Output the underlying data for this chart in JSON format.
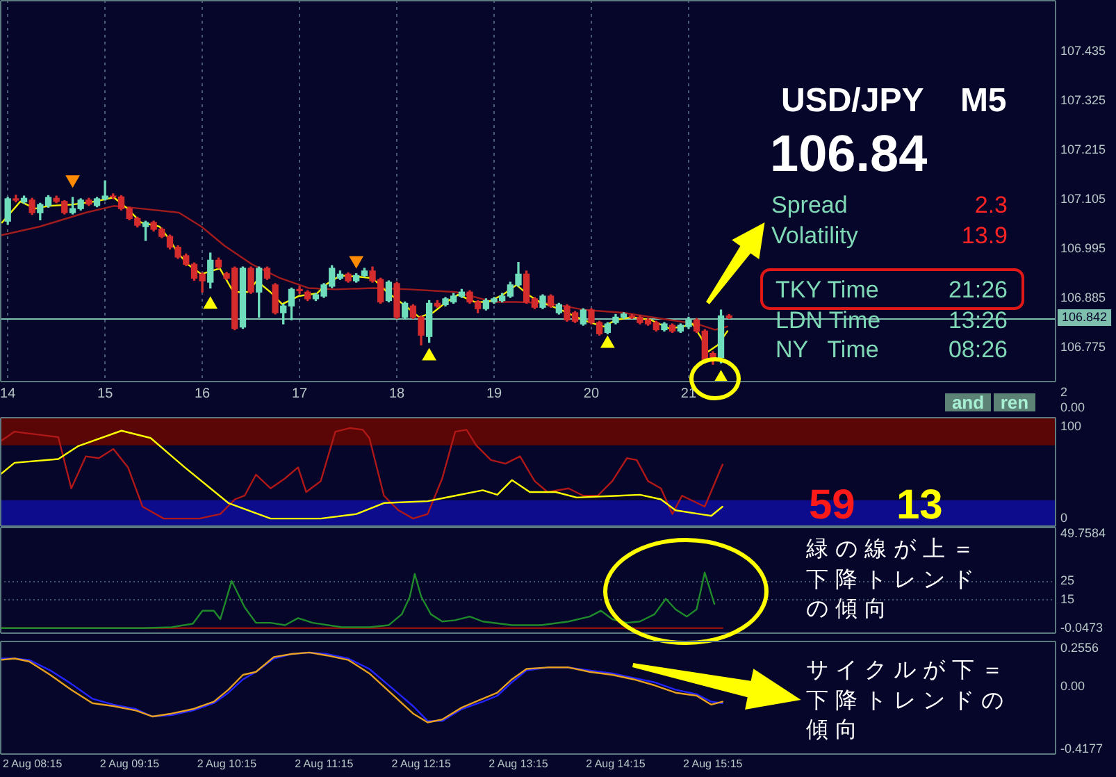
{
  "chart_data": [
    {
      "type": "candlestick",
      "title": "USD/JPY    M5",
      "x": [
        14,
        14.083,
        14.167,
        14.25,
        14.333,
        14.417,
        14.5,
        14.583,
        14.667,
        14.75,
        14.833,
        14.917,
        15,
        15.083,
        15.167,
        15.25,
        15.333,
        15.417,
        15.5,
        15.583,
        15.667,
        15.75,
        15.833,
        15.917,
        16,
        16.083,
        16.167,
        16.25,
        16.333,
        16.417,
        16.5,
        16.583,
        16.667,
        16.75,
        16.833,
        16.917,
        17,
        17.083,
        17.167,
        17.25,
        17.333,
        17.417,
        17.5,
        17.583,
        17.667,
        17.75,
        17.833,
        17.917,
        18,
        18.083,
        18.167,
        18.25,
        18.333,
        18.417,
        18.5,
        18.583,
        18.667,
        18.75,
        18.833,
        18.917,
        19,
        19.083,
        19.167,
        19.25,
        19.333,
        19.417,
        19.5,
        19.583,
        19.667,
        19.75,
        19.833,
        19.917,
        20,
        20.083,
        20.167,
        20.25,
        20.333,
        20.417,
        20.5,
        20.583,
        20.667,
        20.75,
        20.833,
        20.917,
        21,
        21.083,
        21.167,
        21.25,
        21.333,
        21.417
      ],
      "ohlc": [
        [
          107.057,
          107.11,
          107.05,
          107.107
        ],
        [
          107.107,
          107.115,
          107.1,
          107.104
        ],
        [
          107.1,
          107.113,
          107.097,
          107.108
        ],
        [
          107.104,
          107.108,
          107.072,
          107.076
        ],
        [
          107.076,
          107.097,
          107.06,
          107.094
        ],
        [
          107.092,
          107.114,
          107.088,
          107.11
        ],
        [
          107.108,
          107.113,
          107.098,
          107.101
        ],
        [
          107.101,
          107.103,
          107.073,
          107.076
        ],
        [
          107.076,
          107.11,
          107.073,
          107.085
        ],
        [
          107.085,
          107.107,
          107.082,
          107.104
        ],
        [
          107.104,
          107.108,
          107.092,
          107.095
        ],
        [
          107.092,
          107.11,
          107.089,
          107.107
        ],
        [
          107.107,
          107.147,
          107.104,
          107.113
        ],
        [
          107.113,
          107.118,
          107.107,
          107.111
        ],
        [
          107.111,
          107.114,
          107.082,
          107.085
        ],
        [
          107.085,
          107.088,
          107.06,
          107.063
        ],
        [
          107.063,
          107.066,
          107.044,
          107.048
        ],
        [
          107.045,
          107.057,
          107.014,
          107.054
        ],
        [
          107.054,
          107.057,
          107.035,
          107.039
        ],
        [
          107.039,
          107.042,
          107.02,
          107.023
        ],
        [
          107.023,
          107.026,
          106.995,
          106.999
        ],
        [
          106.999,
          107.002,
          106.974,
          106.977
        ],
        [
          106.98,
          106.984,
          106.958,
          106.961
        ],
        [
          106.961,
          106.964,
          106.925,
          106.93
        ],
        [
          106.939,
          106.942,
          106.899,
          106.924
        ],
        [
          106.921,
          106.986,
          106.908,
          106.97
        ],
        [
          106.97,
          106.975,
          106.952,
          106.955
        ],
        [
          106.94,
          106.943,
          106.927,
          106.93
        ],
        [
          106.952,
          106.955,
          106.815,
          106.818
        ],
        [
          106.821,
          106.955,
          106.818,
          106.952
        ],
        [
          106.952,
          106.955,
          106.896,
          106.899
        ],
        [
          106.899,
          106.955,
          106.843,
          106.952
        ],
        [
          106.952,
          106.955,
          106.927,
          106.93
        ],
        [
          106.915,
          106.918,
          106.85,
          106.853
        ],
        [
          106.853,
          106.872,
          106.828,
          106.868
        ],
        [
          106.868,
          106.908,
          106.837,
          106.905
        ],
        [
          106.905,
          106.911,
          106.896,
          106.902
        ],
        [
          106.899,
          106.902,
          106.88,
          106.884
        ],
        [
          106.884,
          106.896,
          106.88,
          106.893
        ],
        [
          106.89,
          106.918,
          106.887,
          106.915
        ],
        [
          106.912,
          106.958,
          106.909,
          106.952
        ],
        [
          106.93,
          106.946,
          106.927,
          106.939
        ],
        [
          106.939,
          106.942,
          106.921,
          106.924
        ],
        [
          106.924,
          106.94,
          106.921,
          106.936
        ],
        [
          106.936,
          106.952,
          106.933,
          106.946
        ],
        [
          106.946,
          106.955,
          106.921,
          106.924
        ],
        [
          106.927,
          106.93,
          106.874,
          106.877
        ],
        [
          106.88,
          106.924,
          106.877,
          106.921
        ],
        [
          106.918,
          106.921,
          106.84,
          106.843
        ],
        [
          106.843,
          106.877,
          106.84,
          106.874
        ],
        [
          106.868,
          106.871,
          106.84,
          106.843
        ],
        [
          106.843,
          106.846,
          106.781,
          106.803
        ],
        [
          106.8,
          106.88,
          106.787,
          106.874
        ],
        [
          106.874,
          106.88,
          106.865,
          106.868
        ],
        [
          106.871,
          106.887,
          106.868,
          106.884
        ],
        [
          106.877,
          106.896,
          106.874,
          106.89
        ],
        [
          106.89,
          106.905,
          106.887,
          106.899
        ],
        [
          106.899,
          106.902,
          106.874,
          106.877
        ],
        [
          106.877,
          106.88,
          106.853,
          106.862
        ],
        [
          106.862,
          106.884,
          106.859,
          106.88
        ],
        [
          106.877,
          106.887,
          106.874,
          106.884
        ],
        [
          106.88,
          106.896,
          106.877,
          106.89
        ],
        [
          106.89,
          106.921,
          106.887,
          106.915
        ],
        [
          106.915,
          106.965,
          106.912,
          106.939
        ],
        [
          106.939,
          106.946,
          106.874,
          106.877
        ],
        [
          106.884,
          106.887,
          106.862,
          106.865
        ],
        [
          106.865,
          106.893,
          106.862,
          106.89
        ],
        [
          106.89,
          106.893,
          106.865,
          106.868
        ],
        [
          106.853,
          106.874,
          106.85,
          106.871
        ],
        [
          106.868,
          106.871,
          106.834,
          106.837
        ],
        [
          106.853,
          106.856,
          106.831,
          106.834
        ],
        [
          106.828,
          106.862,
          106.825,
          106.859
        ],
        [
          106.859,
          106.862,
          106.828,
          106.831
        ],
        [
          106.831,
          106.834,
          106.803,
          106.806
        ],
        [
          106.809,
          106.831,
          106.806,
          106.828
        ],
        [
          106.831,
          106.849,
          106.828,
          106.843
        ],
        [
          106.843,
          106.853,
          106.84,
          106.85
        ],
        [
          106.846,
          106.849,
          106.84,
          106.843
        ],
        [
          106.843,
          106.846,
          106.828,
          106.831
        ],
        [
          106.837,
          106.84,
          106.825,
          106.828
        ],
        [
          106.831,
          106.834,
          106.812,
          106.815
        ],
        [
          106.815,
          106.831,
          106.812,
          106.828
        ],
        [
          106.825,
          106.828,
          106.809,
          106.812
        ],
        [
          106.812,
          106.828,
          106.809,
          106.825
        ],
        [
          106.822,
          106.843,
          106.818,
          106.837
        ],
        [
          106.837,
          106.84,
          106.809,
          106.812
        ],
        [
          106.812,
          106.815,
          106.741,
          106.744
        ],
        [
          106.762,
          106.766,
          106.738,
          106.75
        ],
        [
          106.753,
          106.859,
          106.741,
          106.846
        ],
        [
          106.846,
          106.849,
          106.84,
          106.842
        ]
      ],
      "colors": [
        "#6fdcbc",
        "#d42c2c",
        "#6fdcbc",
        "#d42c2c",
        "#6fdcbc",
        "#6fdcbc",
        "#d42c2c",
        "#d42c2c",
        "#6fdcbc",
        "#6fdcbc",
        "#d42c2c",
        "#6fdcbc",
        "#6fdcbc",
        "#d42c2c",
        "#d42c2c",
        "#d42c2c",
        "#d42c2c",
        "#6fdcbc",
        "#d42c2c",
        "#d42c2c",
        "#d42c2c",
        "#d42c2c",
        "#d42c2c",
        "#d42c2c",
        "#d42c2c",
        "#6fdcbc",
        "#d42c2c",
        "#d42c2c",
        "#d42c2c",
        "#6fdcbc",
        "#d42c2c",
        "#6fdcbc",
        "#d42c2c",
        "#d42c2c",
        "#6fdcbc",
        "#6fdcbc",
        "#d42c2c",
        "#d42c2c",
        "#6fdcbc",
        "#6fdcbc",
        "#6fdcbc",
        "#6fdcbc",
        "#d42c2c",
        "#6fdcbc",
        "#6fdcbc",
        "#d42c2c",
        "#d42c2c",
        "#6fdcbc",
        "#d42c2c",
        "#6fdcbc",
        "#d42c2c",
        "#d42c2c",
        "#6fdcbc",
        "#d42c2c",
        "#6fdcbc",
        "#6fdcbc",
        "#6fdcbc",
        "#d42c2c",
        "#d42c2c",
        "#6fdcbc",
        "#6fdcbc",
        "#6fdcbc",
        "#6fdcbc",
        "#6fdcbc",
        "#d42c2c",
        "#d42c2c",
        "#6fdcbc",
        "#d42c2c",
        "#6fdcbc",
        "#d42c2c",
        "#d42c2c",
        "#6fdcbc",
        "#d42c2c",
        "#d42c2c",
        "#6fdcbc",
        "#6fdcbc",
        "#6fdcbc",
        "#d42c2c",
        "#d42c2c",
        "#d42c2c",
        "#d42c2c",
        "#6fdcbc",
        "#d42c2c",
        "#6fdcbc",
        "#6fdcbc",
        "#d42c2c",
        "#d42c2c",
        "#d42c2c",
        "#6fdcbc",
        "#d42c2c"
      ],
      "series": [
        {
          "type": "line",
          "color": "#a01c1c",
          "x": [
            13.94,
            14.33,
            14.8,
            15.09,
            15.37,
            15.76,
            15.99,
            16.23,
            16.51,
            16.8,
            17.09,
            17.37,
            17.76,
            18.13,
            18.61,
            18.99,
            19.23,
            19.56,
            19.94,
            20.33,
            20.8,
            21.09,
            21.27,
            21.4
          ],
          "values": [
            107.026,
            107.045,
            107.076,
            107.091,
            107.085,
            107.076,
            107.045,
            107.002,
            106.961,
            106.93,
            106.908,
            106.905,
            106.908,
            106.905,
            106.899,
            106.877,
            106.877,
            106.874,
            106.859,
            106.853,
            106.837,
            106.828,
            106.815,
            106.822
          ]
        },
        {
          "type": "line",
          "color": "#f0f000",
          "x": [
            13.94,
            14.13,
            14.28,
            14.42,
            14.66,
            14.9,
            15.09,
            15.23,
            15.37,
            15.56,
            15.66,
            15.75,
            15.85,
            15.99,
            16.18,
            16.32,
            16.47,
            16.56,
            16.7,
            16.82,
            16.99,
            17.18,
            17.28,
            17.42,
            17.61,
            17.75,
            17.9,
            18.09,
            18.23,
            18.37,
            18.51,
            18.63,
            18.8,
            18.94,
            19.09,
            19.23,
            19.35,
            19.47,
            19.66,
            19.85,
            19.99,
            20.13,
            20.25,
            20.42,
            20.61,
            20.8,
            20.94,
            21.04,
            21.13,
            21.2,
            21.3,
            21.4
          ],
          "values": [
            107.054,
            107.101,
            107.085,
            107.091,
            107.094,
            107.101,
            107.11,
            107.085,
            107.054,
            107.045,
            107.017,
            106.986,
            106.961,
            106.939,
            106.952,
            106.899,
            106.899,
            106.924,
            106.899,
            106.872,
            106.89,
            106.896,
            106.917,
            106.936,
            106.933,
            106.93,
            106.899,
            106.868,
            106.843,
            106.853,
            106.877,
            106.893,
            106.877,
            106.877,
            106.893,
            106.915,
            106.893,
            106.877,
            106.862,
            106.843,
            106.831,
            106.822,
            106.837,
            106.843,
            106.837,
            106.818,
            106.822,
            106.828,
            106.797,
            106.766,
            106.781,
            106.812
          ]
        },
        {
          "type": "scatter",
          "marker": "triangle",
          "color": "#ffff00",
          "x": [
            16.083,
            18.333,
            20.167,
            21.333
          ],
          "values": [
            106.871,
            106.756,
            106.784,
            106.707
          ]
        },
        {
          "type": "scatter",
          "marker": "triangle",
          "color": "#ff8c00",
          "x": [
            14.667,
            17.583
          ],
          "values": [
            107.15,
            106.97
          ]
        }
      ],
      "xlim": [
        13.92,
        24.78
      ],
      "xticks": [
        14,
        15,
        16,
        17,
        18,
        19,
        20,
        21
      ],
      "ylim": [
        106.698,
        107.55
      ],
      "yticks": [
        107.435,
        107.325,
        107.215,
        107.105,
        106.995,
        106.885,
        106.775
      ],
      "grid": "x",
      "ref_lines": [
        {
          "axis": "y",
          "value": 106.842,
          "label": "106.842",
          "color": "#7fbfae"
        }
      ],
      "annotations": [
        "106.84",
        "Spread",
        "2.3",
        "Volatility",
        "13.9",
        "TKY Time",
        "21:26",
        "LDN Time",
        "13:26",
        "NY   Time",
        "08:26"
      ]
    },
    {
      "type": "other",
      "annotations": [
        "2",
        "0.00",
        "and",
        "ren"
      ]
    },
    {
      "type": "line",
      "series": [
        {
          "color": "#b01818",
          "x": [
            "--08-02T07:55",
            "--08-02T08:04",
            "--08-02T08:22",
            "--08-02T08:31",
            "--08-02T08:39",
            "--08-02T08:48",
            "--08-02T08:56",
            "--08-02T09:05",
            "--08-02T09:14",
            "--08-02T09:23",
            "--08-02T09:36",
            "--08-02T09:58",
            "--08-02T10:11",
            "--08-02T10:20",
            "--08-02T10:26",
            "--08-02T10:33",
            "--08-02T10:42",
            "--08-02T10:51",
            "--08-02T10:59",
            "--08-02T11:04",
            "--08-02T11:13",
            "--08-02T11:22",
            "--08-02T11:31",
            "--08-02T11:39",
            "--08-02T11:43",
            "--08-02T11:52",
            "--08-02T12:01",
            "--08-02T12:10",
            "--08-02T12:19",
            "--08-02T12:28",
            "--08-02T12:36",
            "--08-02T12:43",
            "--08-02T12:49",
            "--08-02T12:58",
            "--08-02T13:07",
            "--08-02T13:16",
            "--08-02T13:25",
            "--08-02T13:33",
            "--08-02T13:46",
            "--08-02T13:55",
            "--08-02T14:04",
            "--08-02T14:13",
            "--08-02T14:22",
            "--08-02T14:28",
            "--08-02T14:35",
            "--08-02T14:43",
            "--08-02T14:50",
            "--08-02T14:56",
            "--08-02T15:10",
            "--08-02T15:21"
          ],
          "values": [
            84,
            95,
            91,
            89,
            33,
            68,
            66,
            76,
            56,
            13,
            0,
            0,
            5,
            21,
            25,
            48,
            33,
            44,
            56,
            29,
            41,
            95,
            99,
            97,
            88,
            25,
            9,
            0,
            5,
            44,
            95,
            97,
            80,
            64,
            60,
            68,
            41,
            29,
            33,
            25,
            25,
            41,
            66,
            64,
            41,
            33,
            5,
            25,
            13,
            59
          ]
        },
        {
          "color": "#ffff00",
          "x": [
            "--08-02T07:55",
            "--08-02T08:04",
            "--08-02T08:31",
            "--08-02T08:43",
            "--08-02T09:10",
            "--08-02T09:28",
            "--08-02T09:49",
            "--08-02T10:16",
            "--08-02T10:42",
            "--08-02T11:13",
            "--08-02T11:35",
            "--08-02T11:52",
            "--08-02T12:19",
            "--08-02T12:36",
            "--08-02T12:53",
            "--08-02T13:02",
            "--08-02T13:11",
            "--08-02T13:22",
            "--08-02T13:38",
            "--08-02T13:51",
            "--08-02T14:17",
            "--08-02T14:30",
            "--08-02T14:43",
            "--08-02T14:52",
            "--08-02T15:14",
            "--08-02T15:21"
          ],
          "values": [
            48,
            61,
            65,
            79,
            96,
            88,
            56,
            17,
            0,
            0,
            5,
            17,
            19,
            25,
            31,
            26,
            42,
            29,
            29,
            23,
            25,
            26,
            21,
            9,
            3,
            13
          ]
        }
      ],
      "xlim": [
        "--08-02T07:55",
        "--08-02T18:47"
      ],
      "ylim": [
        -9,
        111
      ],
      "yticks": [
        100,
        0
      ],
      "tick_labels": "y",
      "bands": [
        {
          "axis": "y",
          "from": 80,
          "to": 111,
          "color": "#5a0606"
        },
        {
          "axis": "y",
          "from": -9,
          "to": 20,
          "color": "#0c0c8c"
        }
      ],
      "annotations": [
        "59",
        "13"
      ]
    },
    {
      "type": "line",
      "series": [
        {
          "color": "#8c1010",
          "x": [
            "--08-02T07:55",
            "--08-02T15:21"
          ],
          "values": [
            0,
            0
          ]
        },
        {
          "color": "#1f8a2a",
          "x": [
            "--08-02T07:55",
            "--08-02T08:22",
            "--08-02T08:39",
            "--08-02T09:05",
            "--08-02T09:23",
            "--08-02T09:41",
            "--08-02T09:54",
            "--08-02T10:00",
            "--08-02T10:07",
            "--08-02T10:11",
            "--08-02T10:18",
            "--08-02T10:26",
            "--08-02T10:33",
            "--08-02T10:42",
            "--08-02T10:51",
            "--08-02T10:59",
            "--08-02T11:08",
            "--08-02T11:26",
            "--08-02T11:43",
            "--08-02T11:55",
            "--08-02T12:03",
            "--08-02T12:08",
            "--08-02T12:11",
            "--08-02T12:15",
            "--08-02T12:21",
            "--08-02T12:28",
            "--08-02T12:36",
            "--08-02T12:45",
            "--08-02T12:53",
            "--08-02T13:11",
            "--08-02T13:29",
            "--08-02T13:46",
            "--08-02T13:59",
            "--08-02T14:06",
            "--08-02T14:13",
            "--08-02T14:22",
            "--08-02T14:30",
            "--08-02T14:39",
            "--08-02T14:46",
            "--08-02T14:52",
            "--08-02T14:59",
            "--08-02T15:05",
            "--08-02T15:10",
            "--08-02T15:16"
          ],
          "values": [
            0,
            0,
            0,
            0,
            0,
            0.5,
            2.3,
            9.2,
            9.2,
            4.7,
            24.9,
            11,
            2.8,
            2.8,
            1.6,
            5.3,
            2.8,
            0.5,
            0.5,
            1.6,
            7.3,
            16.6,
            28.6,
            16.6,
            7.3,
            3.5,
            4.2,
            6.1,
            3.5,
            1.6,
            1.6,
            3.5,
            6.1,
            9.2,
            4.7,
            2.8,
            3.5,
            7.3,
            15.5,
            9.9,
            6.1,
            9.9,
            29.3,
            12.7
          ]
        }
      ],
      "xlim": [
        "--08-02T07:55",
        "--08-02T18:47"
      ],
      "ylim": [
        -3,
        53.4
      ],
      "yticks": [
        49.7584,
        25,
        15,
        -0.0473
      ],
      "tick_labels": "y",
      "ref_lines": [
        {
          "axis": "y",
          "value": 25,
          "color": "#46586e",
          "line_style": "dotted"
        },
        {
          "axis": "y",
          "value": 15,
          "color": "#46586e",
          "line_style": "dotted"
        }
      ],
      "annotations": [
        "緑の線が上＝下降トレンドの傾向"
      ]
    },
    {
      "type": "line",
      "x": [
        "--08-02T07:55",
        "--08-02T08:04",
        "--08-02T08:13",
        "--08-02T08:26",
        "--08-02T08:39",
        "--08-02T08:52",
        "--08-02T09:05",
        "--08-02T09:19",
        "--08-02T09:29",
        "--08-02T09:41",
        "--08-02T09:54",
        "--08-02T10:07",
        "--08-02T10:16",
        "--08-02T10:25",
        "--08-02T10:33",
        "--08-02T10:44",
        "--08-02T10:55",
        "--08-02T11:06",
        "--08-02T11:17",
        "--08-02T11:30",
        "--08-02T11:43",
        "--08-02T11:56",
        "--08-02T12:10",
        "--08-02T12:19",
        "--08-02T12:28",
        "--08-02T12:40",
        "--08-02T12:53",
        "--08-02T13:02",
        "--08-02T13:11",
        "--08-02T13:20",
        "--08-02T13:33",
        "--08-02T13:46",
        "--08-02T13:59",
        "--08-02T14:13",
        "--08-02T14:26",
        "--08-02T14:39",
        "--08-02T14:52",
        "--08-02T15:05",
        "--08-02T15:14",
        "--08-02T15:21"
      ],
      "series": [
        {
          "color": "#2424ff",
          "values": [
            0.19,
            0.19,
            0.18,
            0.11,
            0.02,
            -0.08,
            -0.12,
            -0.15,
            -0.2,
            -0.19,
            -0.16,
            -0.11,
            -0.04,
            0.05,
            0.1,
            0.19,
            0.22,
            0.23,
            0.22,
            0.19,
            0.12,
            0,
            -0.13,
            -0.23,
            -0.23,
            -0.15,
            -0.1,
            -0.06,
            0.03,
            0.11,
            0.13,
            0.13,
            0.11,
            0.09,
            0.06,
            0.03,
            -0.02,
            -0.05,
            -0.1,
            -0.11
          ]
        },
        {
          "color": "#e8a020",
          "values": [
            0.18,
            0.19,
            0.17,
            0.08,
            -0.02,
            -0.11,
            -0.13,
            -0.16,
            -0.2,
            -0.18,
            -0.15,
            -0.1,
            -0.02,
            0.08,
            0.1,
            0.2,
            0.22,
            0.23,
            0.21,
            0.18,
            0.09,
            -0.04,
            -0.18,
            -0.24,
            -0.22,
            -0.14,
            -0.08,
            -0.04,
            0.05,
            0.12,
            0.13,
            0.13,
            0.1,
            0.08,
            0.05,
            0.01,
            -0.04,
            -0.06,
            -0.12,
            -0.1
          ]
        }
      ],
      "xlim": [
        "--08-02T07:55",
        "--08-02T18:47"
      ],
      "xticks": [
        {
          "value": "--08-02T08:15",
          "label": "2 Aug 08:15"
        },
        {
          "value": "--08-02T09:15",
          "label": "2 Aug 09:15"
        },
        {
          "value": "--08-02T10:15",
          "label": "2 Aug 10:15"
        },
        {
          "value": "--08-02T11:15",
          "label": "2 Aug 11:15"
        },
        {
          "value": "--08-02T12:15",
          "label": "2 Aug 12:15"
        },
        {
          "value": "--08-02T13:15",
          "label": "2 Aug 13:15"
        },
        {
          "value": "--08-02T14:15",
          "label": "2 Aug 14:15"
        },
        {
          "value": "--08-02T15:15",
          "label": "2 Aug 15:15"
        }
      ],
      "ylim": [
        -0.457,
        0.309
      ],
      "yticks": [
        0.2556,
        {
          "value": 0,
          "label": "0.00"
        },
        -0.4177
      ],
      "annotations": [
        "サイクルが下＝下降トレンドの傾向"
      ]
    }
  ]
}
